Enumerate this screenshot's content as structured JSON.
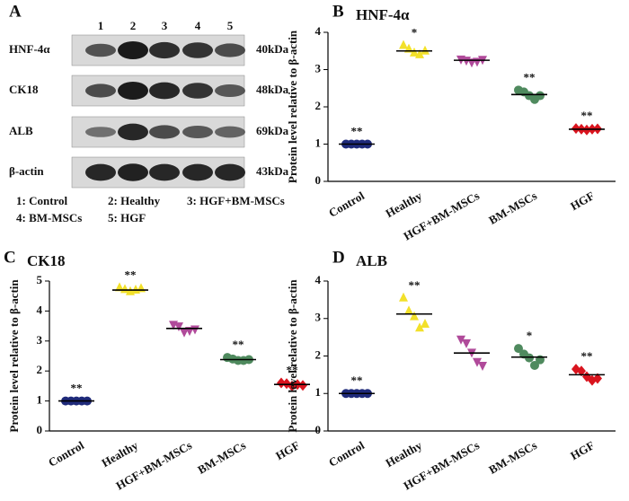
{
  "blot": {
    "panel": "A",
    "lanes": [
      "1",
      "2",
      "3",
      "4",
      "5"
    ],
    "rows": [
      {
        "label": "HNF-4α",
        "size": "40kDa"
      },
      {
        "label": "CK18",
        "size": "48kDa"
      },
      {
        "label": "ALB",
        "size": "69kDa"
      },
      {
        "label": "β-actin",
        "size": "43kDa"
      }
    ],
    "legend": [
      "1: Control",
      "2: Healthy",
      "3: HGF+BM-MSCs",
      "4: BM-MSCs",
      "5: HGF"
    ]
  },
  "chart_data": [
    {
      "type": "dot",
      "panel": "B",
      "title": "HNF-4α",
      "ylabel": "Protein level relative to β-actin",
      "categories": [
        "Control",
        "Healthy",
        "HGF+BM-MSCs",
        "BM-MSCs",
        "HGF"
      ],
      "colors": [
        "#1f2a7a",
        "#f2e02a",
        "#b04a9a",
        "#4f8a5e",
        "#d9141e"
      ],
      "markers": [
        "circle",
        "triangle",
        "triangle-down",
        "circle",
        "diamond"
      ],
      "points": [
        [
          1,
          1,
          1,
          1,
          1
        ],
        [
          3.65,
          3.55,
          3.45,
          3.4,
          3.5
        ],
        [
          3.28,
          3.25,
          3.2,
          3.22,
          3.27
        ],
        [
          2.45,
          2.4,
          2.3,
          2.2,
          2.3
        ],
        [
          1.42,
          1.4,
          1.38,
          1.4,
          1.41
        ]
      ],
      "means": [
        1,
        3.5,
        3.25,
        2.33,
        1.4
      ],
      "annotations": [
        "**",
        "*",
        null,
        "**",
        "**"
      ],
      "ylim": [
        0,
        4
      ],
      "yticks": [
        0,
        1,
        2,
        3,
        4
      ]
    },
    {
      "type": "dot",
      "panel": "C",
      "title": "CK18",
      "ylabel": "Protein level relative to β-actin",
      "categories": [
        "Control",
        "Healthy",
        "HGF+BM-MSCs",
        "BM-MSCs",
        "HGF"
      ],
      "colors": [
        "#1f2a7a",
        "#f2e02a",
        "#b04a9a",
        "#4f8a5e",
        "#d9141e"
      ],
      "markers": [
        "circle",
        "triangle",
        "triangle-down",
        "circle",
        "diamond"
      ],
      "points": [
        [
          1,
          1,
          1,
          1,
          1
        ],
        [
          4.78,
          4.72,
          4.65,
          4.7,
          4.75
        ],
        [
          3.55,
          3.5,
          3.3,
          3.35,
          3.4
        ],
        [
          2.45,
          2.4,
          2.35,
          2.35,
          2.38
        ],
        [
          1.6,
          1.58,
          1.5,
          1.55,
          1.52
        ]
      ],
      "means": [
        1,
        4.7,
        3.42,
        2.38,
        1.55
      ],
      "annotations": [
        "**",
        "**",
        null,
        "**",
        "**"
      ],
      "ylim": [
        0,
        5
      ],
      "yticks": [
        0,
        1,
        2,
        3,
        4,
        5
      ]
    },
    {
      "type": "dot",
      "panel": "D",
      "title": "ALB",
      "ylabel": "Protein level relative to β-actin",
      "categories": [
        "Control",
        "Healthy",
        "HGF+BM-MSCs",
        "BM-MSCs",
        "HGF"
      ],
      "colors": [
        "#1f2a7a",
        "#f2e02a",
        "#b04a9a",
        "#4f8a5e",
        "#d9141e"
      ],
      "markers": [
        "circle",
        "triangle",
        "triangle-down",
        "circle",
        "diamond"
      ],
      "points": [
        [
          1,
          1,
          1,
          1,
          1
        ],
        [
          3.55,
          3.2,
          3.05,
          2.75,
          2.85
        ],
        [
          2.45,
          2.35,
          2.1,
          1.85,
          1.75
        ],
        [
          2.2,
          2.05,
          1.95,
          1.75,
          1.9
        ],
        [
          1.65,
          1.6,
          1.45,
          1.35,
          1.4
        ]
      ],
      "means": [
        1,
        3.12,
        2.08,
        1.97,
        1.5
      ],
      "annotations": [
        "**",
        "**",
        null,
        "*",
        "**"
      ],
      "ylim": [
        0,
        4
      ],
      "yticks": [
        0,
        1,
        2,
        3,
        4
      ]
    }
  ]
}
